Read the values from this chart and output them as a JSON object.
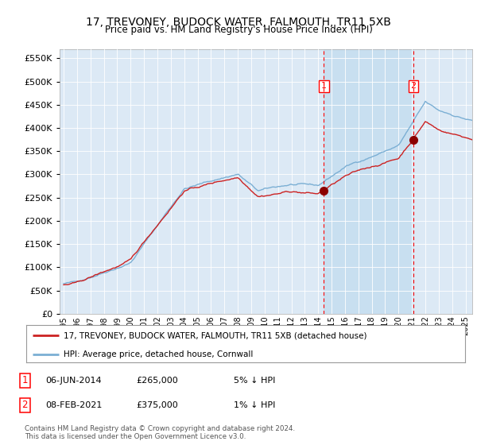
{
  "title": "17, TREVONEY, BUDOCK WATER, FALMOUTH, TR11 5XB",
  "subtitle": "Price paid vs. HM Land Registry's House Price Index (HPI)",
  "legend_line1": "17, TREVONEY, BUDOCK WATER, FALMOUTH, TR11 5XB (detached house)",
  "legend_line2": "HPI: Average price, detached house, Cornwall",
  "footnote": "Contains HM Land Registry data © Crown copyright and database right 2024.\nThis data is licensed under the Open Government Licence v3.0.",
  "sale1_date": "06-JUN-2014",
  "sale1_price": 265000,
  "sale1_note": "5% ↓ HPI",
  "sale2_date": "08-FEB-2021",
  "sale2_price": 375000,
  "sale2_note": "1% ↓ HPI",
  "ylim": [
    0,
    570000
  ],
  "yticks": [
    0,
    50000,
    100000,
    150000,
    200000,
    250000,
    300000,
    350000,
    400000,
    450000,
    500000,
    550000
  ],
  "plot_bg": "#dce9f5",
  "red_line_color": "#cc2222",
  "blue_line_color": "#7bafd4",
  "highlight_bg": "#c8dff0",
  "sale1_x": 2014.42,
  "sale2_x": 2021.1,
  "xmin": 1995.0,
  "xmax": 2025.5
}
